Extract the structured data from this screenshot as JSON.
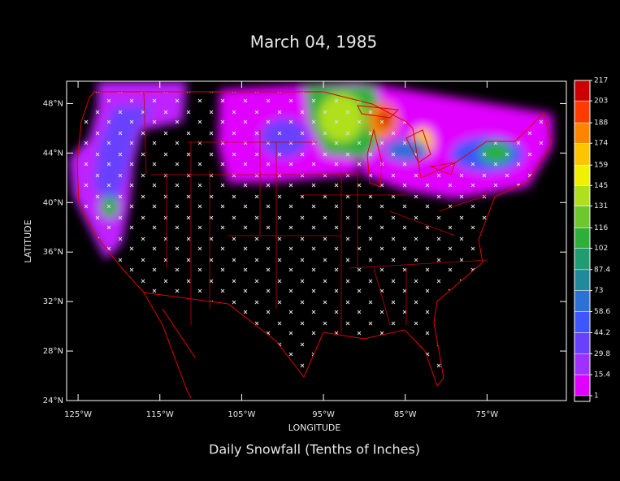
{
  "chart_data": {
    "type": "map",
    "title": "March 04, 1985",
    "subtitle": "Daily Snowfall (Tenths of Inches)",
    "x_label": "LONGITUDE",
    "y_label": "LATITUDE",
    "xlim": [
      -126.4,
      -65.3
    ],
    "ylim": [
      24,
      49.8
    ],
    "xticks": [
      {
        "value": -125,
        "label": "125°W"
      },
      {
        "value": -115,
        "label": "115°W"
      },
      {
        "value": -105,
        "label": "105°W"
      },
      {
        "value": -95,
        "label": "95°W"
      },
      {
        "value": -85,
        "label": "85°W"
      },
      {
        "value": -75,
        "label": "75°W"
      }
    ],
    "yticks": [
      {
        "value": 24,
        "label": "24°N"
      },
      {
        "value": 28,
        "label": "28°N"
      },
      {
        "value": 32,
        "label": "32°N"
      },
      {
        "value": 36,
        "label": "36°N"
      },
      {
        "value": 40,
        "label": "40°N"
      },
      {
        "value": 44,
        "label": "44°N"
      },
      {
        "value": 48,
        "label": "48°N"
      }
    ],
    "colorbar": {
      "ticks": [
        1,
        15.4,
        29.8,
        44.2,
        58.6,
        73,
        87.4,
        102,
        116,
        131,
        145,
        159,
        174,
        188,
        203,
        217
      ],
      "colors": [
        "#e000ff",
        "#a030ff",
        "#6a40ff",
        "#3f55ff",
        "#2c70d8",
        "#208a9c",
        "#1f9c72",
        "#2cb03a",
        "#6cc82c",
        "#b0e01c",
        "#f0f000",
        "#ffc400",
        "#ff8400",
        "#ff3c00",
        "#cc0000"
      ]
    }
  }
}
